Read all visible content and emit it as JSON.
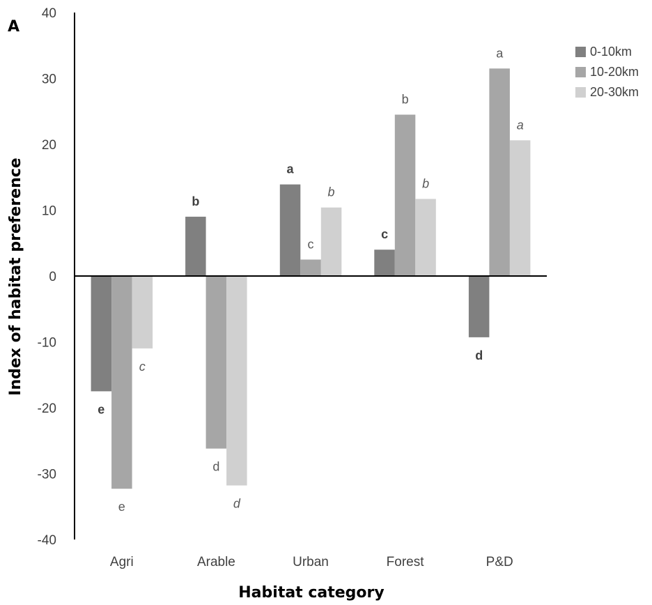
{
  "chart_data": {
    "type": "bar",
    "panel_label": "A",
    "title": "",
    "xlabel": "Habitat category",
    "ylabel": "Index of habitat preference",
    "ylim": [
      -40,
      40
    ],
    "yticks": [
      "40",
      "30",
      "20",
      "10",
      "0",
      "-10",
      "-20",
      "-30",
      "-40"
    ],
    "categories": [
      "Agri",
      "Arable",
      "Urban",
      "Forest",
      "P&D"
    ],
    "legend_position": "top-right",
    "grid": false,
    "series": [
      {
        "name": "0-10km",
        "color": "#808080",
        "values": [
          -17.5,
          9.0,
          13.9,
          4.0,
          -9.3
        ],
        "labels": [
          "e",
          "b",
          "a",
          "c",
          "d"
        ],
        "label_style": "bold"
      },
      {
        "name": "10-20km",
        "color": "#a6a6a6",
        "values": [
          -32.3,
          -26.2,
          2.5,
          24.5,
          31.5
        ],
        "labels": [
          "e",
          "d",
          "c",
          "b",
          "a"
        ],
        "label_style": "normal"
      },
      {
        "name": "20-30km",
        "color": "#d0d0d0",
        "values": [
          -11.0,
          -31.8,
          10.4,
          11.7,
          20.6
        ],
        "labels": [
          "c",
          "d",
          "b",
          "b",
          "a"
        ],
        "label_style": "italic"
      }
    ]
  }
}
